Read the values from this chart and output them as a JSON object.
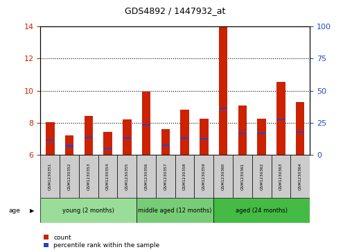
{
  "title": "GDS4892 / 1447932_at",
  "samples": [
    "GSM1230351",
    "GSM1230352",
    "GSM1230353",
    "GSM1230354",
    "GSM1230355",
    "GSM1230356",
    "GSM1230357",
    "GSM1230358",
    "GSM1230359",
    "GSM1230360",
    "GSM1230361",
    "GSM1230362",
    "GSM1230363",
    "GSM1230364"
  ],
  "count_values": [
    8.05,
    7.2,
    8.45,
    7.45,
    8.2,
    9.95,
    7.62,
    8.82,
    8.25,
    13.95,
    9.1,
    8.25,
    10.55,
    9.3
  ],
  "percentile_values": [
    6.9,
    6.55,
    7.1,
    6.4,
    7.05,
    7.85,
    6.62,
    7.05,
    7.0,
    8.9,
    7.35,
    7.35,
    8.2,
    7.45
  ],
  "ylim_left": [
    6,
    14
  ],
  "ylim_right": [
    0,
    100
  ],
  "yticks_left": [
    6,
    8,
    10,
    12,
    14
  ],
  "yticks_right": [
    0,
    25,
    50,
    75,
    100
  ],
  "bar_color": "#cc2200",
  "percentile_color": "#2244cc",
  "bar_width": 0.45,
  "groups": [
    {
      "label": "young (2 months)",
      "start": 0,
      "end": 5,
      "color": "#99dd99"
    },
    {
      "label": "middle aged (12 months)",
      "start": 5,
      "end": 9,
      "color": "#77cc77"
    },
    {
      "label": "aged (24 months)",
      "start": 9,
      "end": 14,
      "color": "#44bb44"
    }
  ],
  "age_label": "age",
  "legend_count": "count",
  "legend_percentile": "percentile rank within the sample",
  "bg_color": "#ffffff",
  "grid_color": "#000000",
  "tick_label_color_left": "#cc2200",
  "tick_label_color_right": "#2244cc",
  "sample_bg": "#cccccc"
}
